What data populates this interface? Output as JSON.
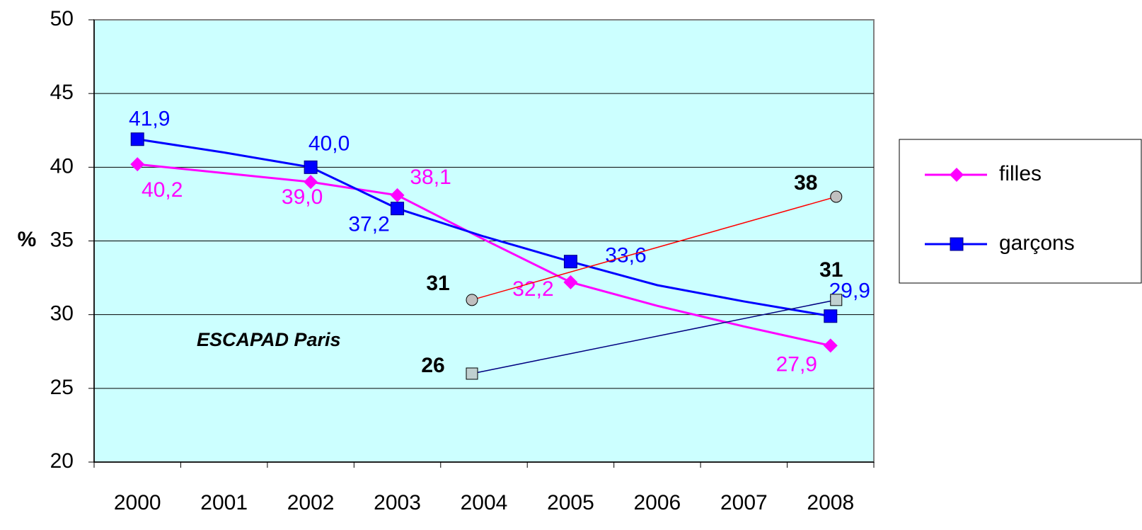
{
  "chart_data": {
    "type": "line",
    "annotation": "ESCAPAD Paris",
    "y_label": "%",
    "categories": [
      "2000",
      "2001",
      "2002",
      "2003",
      "2004",
      "2005",
      "2006",
      "2007",
      "2008"
    ],
    "ylim": [
      20,
      50
    ],
    "yticks": [
      20,
      25,
      30,
      35,
      40,
      45,
      50
    ],
    "grid": true,
    "background": "#ccffff",
    "legend": "right",
    "series": [
      {
        "name": "filles",
        "color": "#ff00ff",
        "marker": "diamond",
        "values": [
          40.2,
          39.6,
          39.0,
          38.1,
          35.1,
          32.2,
          30.6,
          29.2,
          27.9
        ],
        "value_labels": [
          "40,2",
          null,
          "39,0",
          "38,1",
          null,
          "32,2",
          null,
          null,
          "27,9"
        ]
      },
      {
        "name": "garçons",
        "color": "#0000ff",
        "marker": "square",
        "values": [
          41.9,
          41.0,
          40.0,
          37.2,
          35.3,
          33.6,
          32.0,
          30.9,
          29.9
        ],
        "value_labels": [
          "41,9",
          null,
          "40,0",
          "37,2",
          null,
          "33,6",
          null,
          null,
          "29,9"
        ]
      },
      {
        "color": "#ff0000",
        "marker": "circle",
        "x": [
          "2004",
          "2008"
        ],
        "values": [
          31,
          38
        ]
      },
      {
        "color": "#000080",
        "marker": "square-gray",
        "x": [
          "2004",
          "2008"
        ],
        "values": [
          26,
          31
        ]
      }
    ]
  }
}
